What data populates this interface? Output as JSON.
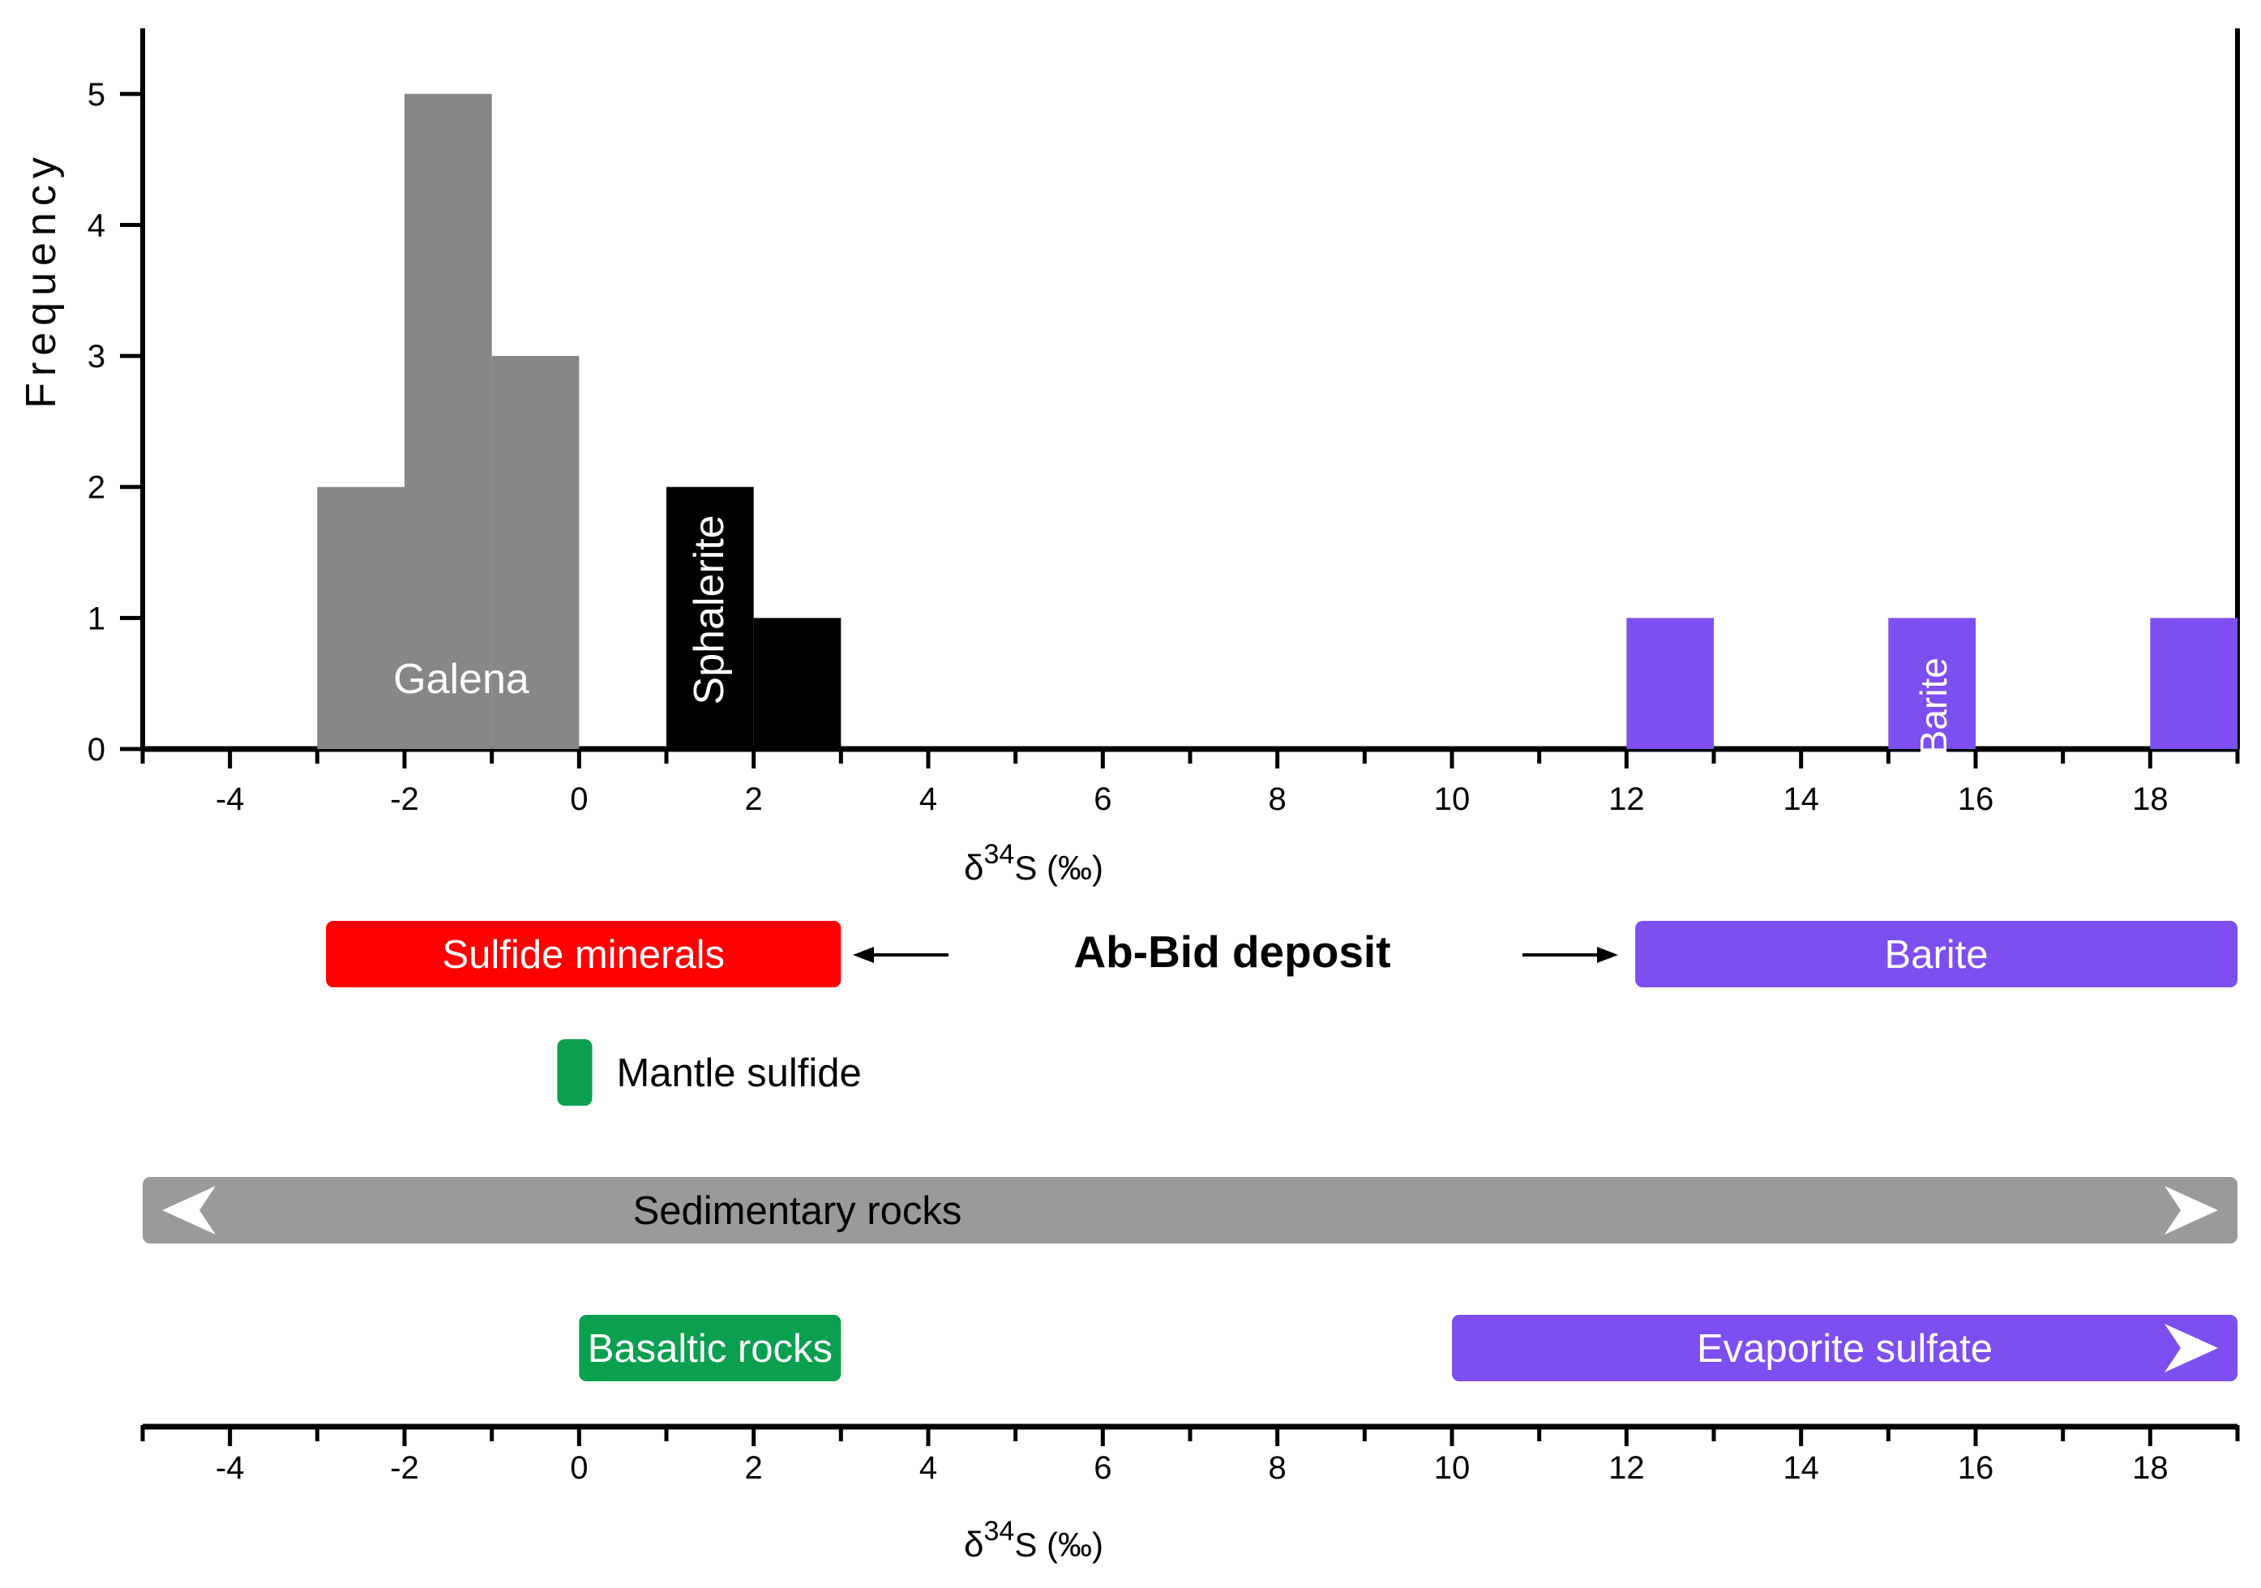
{
  "chart_data": {
    "type": "bar",
    "ylabel": "Frequency",
    "xlabel_base": "δ",
    "xlabel_sup": "34",
    "xlabel_tail": "S (‰)",
    "xlim": [
      -5,
      19
    ],
    "ylim": [
      0,
      5.5
    ],
    "x_ticks": [
      -4,
      -2,
      0,
      2,
      4,
      6,
      8,
      10,
      12,
      14,
      16,
      18
    ],
    "y_ticks": [
      0,
      1,
      2,
      3,
      4,
      5
    ],
    "colors": {
      "galena": "#878787",
      "sphalerite": "#000000",
      "barite": "#7d4ff0",
      "sulfide": "#ff0000",
      "mantle": "#0aa050",
      "sedimentary": "#9a9a9a",
      "basaltic": "#0aa050",
      "evaporite": "#7d4ff0"
    },
    "series": [
      {
        "name": "Galena",
        "color_key": "galena",
        "label": "Galena",
        "bins": [
          {
            "x0": -3,
            "x1": -2,
            "count": 2
          },
          {
            "x0": -2,
            "x1": -1,
            "count": 5
          },
          {
            "x0": -1,
            "x1": 0,
            "count": 3
          }
        ]
      },
      {
        "name": "Sphalerite",
        "color_key": "sphalerite",
        "label": "Sphalerite",
        "bins": [
          {
            "x0": 1,
            "x1": 2,
            "count": 2
          },
          {
            "x0": 2,
            "x1": 3,
            "count": 1
          }
        ]
      },
      {
        "name": "Barite",
        "color_key": "barite",
        "label": "Barite",
        "bins": [
          {
            "x0": 12,
            "x1": 13,
            "count": 1
          },
          {
            "x0": 15,
            "x1": 16,
            "count": 1
          },
          {
            "x0": 18,
            "x1": 19,
            "count": 1
          }
        ]
      }
    ],
    "deposit_label": "Ab-Bid deposit",
    "ranges": [
      {
        "id": "sulfide-minerals",
        "label": "Sulfide minerals",
        "x0": -2.9,
        "x1": 3,
        "color_key": "sulfide",
        "text_light": true
      },
      {
        "id": "barite",
        "label": "Barite",
        "x0": 12.1,
        "x1": 19,
        "color_key": "barite",
        "text_light": true
      },
      {
        "id": "mantle-sulfide",
        "label": "Mantle sulfide",
        "x0": -0.25,
        "x1": 0.15,
        "color_key": "mantle",
        "text_light": false
      },
      {
        "id": "sedimentary-rocks",
        "label": "Sedimentary rocks",
        "x0": -5,
        "x1": 19,
        "color_key": "sedimentary",
        "text_light": false,
        "arrow_left": true,
        "arrow_right": true
      },
      {
        "id": "basaltic-rocks",
        "label": "Basaltic rocks",
        "x0": 0,
        "x1": 3,
        "color_key": "basaltic",
        "text_light": true
      },
      {
        "id": "evaporite-sulfate",
        "label": "Evaporite sulfate",
        "x0": 10,
        "x1": 19,
        "color_key": "evaporite",
        "text_light": true,
        "arrow_right": true
      }
    ]
  }
}
